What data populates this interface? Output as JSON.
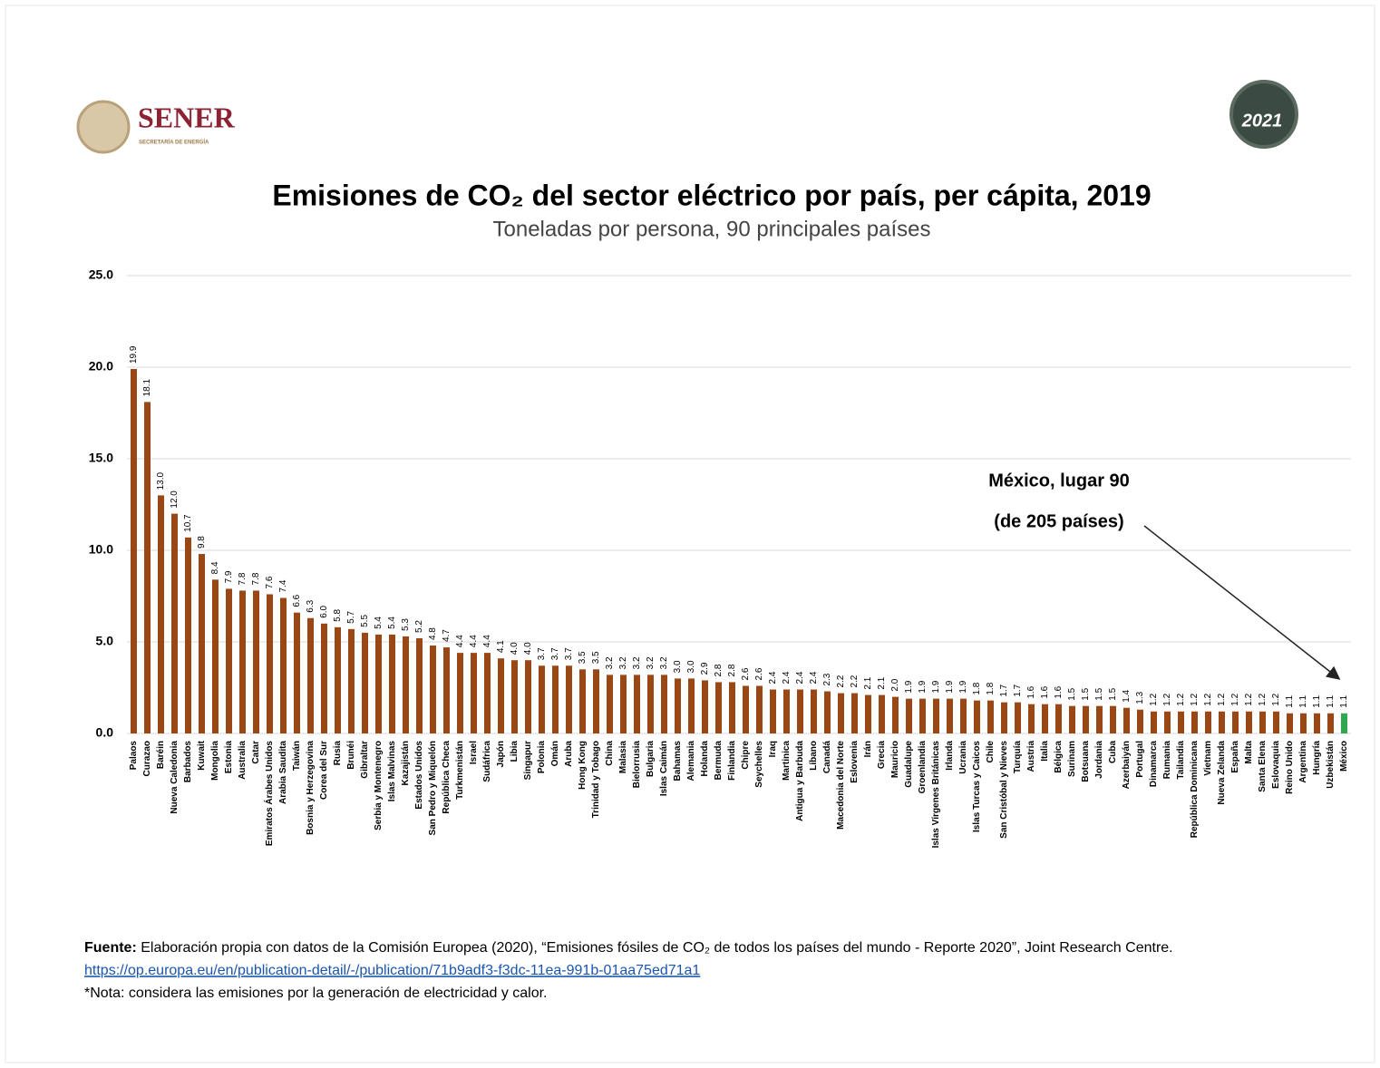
{
  "header": {
    "logo_left": "SENER",
    "logo_left_sub": "SECRETARÍA DE ENERGÍA",
    "logo_right": "2021"
  },
  "chart_data": {
    "type": "bar",
    "title": "Emisiones de CO₂ del sector eléctrico por país, per cápita, 2019",
    "subtitle": "Toneladas por persona, 90 principales países",
    "categories": [
      "Palaos",
      "Curazao",
      "Baréin",
      "Nueva Caledonia",
      "Barbados",
      "Kuwait",
      "Mongolia",
      "Estonia",
      "Australia",
      "Catar",
      "Emiratos Árabes Unidos",
      "Arabia Saudita",
      "Taiwán",
      "Bosnia y Herzegovina",
      "Corea del Sur",
      "Rusia",
      "Brunéi",
      "Gibraltar",
      "Serbia y Montenegro",
      "Islas Malvinas",
      "Kazajistán",
      "Estados Unidos",
      "San Pedro y Miquelón",
      "República Checa",
      "Turkmenistán",
      "Israel",
      "Sudáfrica",
      "Japón",
      "Libia",
      "Singapur",
      "Polonia",
      "Omán",
      "Aruba",
      "Hong Kong",
      "Trinidad y Tobago",
      "China",
      "Malasia",
      "Bielorrusia",
      "Bulgaria",
      "Islas Caimán",
      "Bahamas",
      "Alemania",
      "Holanda",
      "Bermuda",
      "Finlandia",
      "Chipre",
      "Seychelles",
      "Iraq",
      "Martinica",
      "Antigua y Barbuda",
      "Líbano",
      "Canadá",
      "Macedonia del Norte",
      "Eslovenia",
      "Irán",
      "Grecia",
      "Mauricio",
      "Guadalupe",
      "Groenlandia",
      "Islas Vírgenes Británicas",
      "Irlanda",
      "Ucrania",
      "Islas Turcas y Caicos",
      "Chile",
      "San Cristóbal y Nieves",
      "Turquía",
      "Austria",
      "Italia",
      "Bélgica",
      "Surinam",
      "Botsuana",
      "Jordania",
      "Cuba",
      "Azerbaiyán",
      "Portugal",
      "Dinamarca",
      "Rumania",
      "Tailandia",
      "República Dominicana",
      "Vietnam",
      "Nueva Zelanda",
      "España",
      "Malta",
      "Santa Elena",
      "Eslovaquia",
      "Reino Unido",
      "Argentina",
      "Hungría",
      "Uzbekistán",
      "México"
    ],
    "values": [
      19.9,
      18.1,
      13.0,
      12.0,
      10.7,
      9.8,
      8.4,
      7.9,
      7.8,
      7.8,
      7.6,
      7.4,
      6.6,
      6.3,
      6.0,
      5.8,
      5.7,
      5.5,
      5.4,
      5.4,
      5.3,
      5.2,
      4.8,
      4.7,
      4.4,
      4.4,
      4.4,
      4.1,
      4.0,
      4.0,
      3.7,
      3.7,
      3.7,
      3.5,
      3.5,
      3.2,
      3.2,
      3.2,
      3.2,
      3.2,
      3.0,
      3.0,
      2.9,
      2.8,
      2.8,
      2.6,
      2.6,
      2.4,
      2.4,
      2.4,
      2.4,
      2.3,
      2.2,
      2.2,
      2.1,
      2.1,
      2.0,
      1.9,
      1.9,
      1.9,
      1.9,
      1.9,
      1.8,
      1.8,
      1.7,
      1.7,
      1.6,
      1.6,
      1.6,
      1.5,
      1.5,
      1.5,
      1.5,
      1.4,
      1.3,
      1.2,
      1.2,
      1.2,
      1.2,
      1.2,
      1.2,
      1.2,
      1.2,
      1.2,
      1.2,
      1.1,
      1.1,
      1.1,
      1.1,
      1.1
    ],
    "value_labels": [
      "19.9",
      "18.1",
      "13.0",
      "12.0",
      "10.7",
      "9.8",
      "8.4",
      "7.9",
      "7.8",
      "7.8",
      "7.6",
      "7.4",
      "6.6",
      "6.3",
      "6.0",
      "5.8",
      "5.7",
      "5.5",
      "5.4",
      "5.4",
      "5.3",
      "5.2",
      "4.8",
      "4.7",
      "4.4",
      "4.4",
      "4.4",
      "4.1",
      "4.0",
      "4.0",
      "3.7",
      "3.7",
      "3.7",
      "3.5",
      "3.5",
      "3.2",
      "3.2",
      "3.2",
      "3.2",
      "3.2",
      "3.0",
      "3.0",
      "2.9",
      "2.8",
      "2.8",
      "2.6",
      "2.6",
      "2.4",
      "2.4",
      "2.4",
      "2.4",
      "2.3",
      "2.2",
      "2.2",
      "2.1",
      "2.1",
      "2.0",
      "1.9",
      "1.9",
      "1.9",
      "1.9",
      "1.9",
      "1.8",
      "1.8",
      "1.7",
      "1.7",
      "1.6",
      "1.6",
      "1.6",
      "1.5",
      "1.5",
      "1.5",
      "1.5",
      "1.4",
      "1.3",
      "1.2",
      "1.2",
      "1.2",
      "1.2",
      "1.2",
      "1.2",
      "1.2",
      "1.2",
      "1.2",
      "1.2",
      "1.1",
      "1.1",
      "1.1",
      "1.1",
      "1.1"
    ],
    "color": "#9a4716",
    "highlight": {
      "category": "México",
      "color": "#2fa84f"
    },
    "ylim": [
      0,
      25
    ],
    "yticks": [
      {
        "value": 0,
        "label": "0.0"
      },
      {
        "value": 5,
        "label": "5.0"
      },
      {
        "value": 10,
        "label": "10.0"
      },
      {
        "value": 15,
        "label": "15.0"
      },
      {
        "value": 20,
        "label": "20.0"
      },
      {
        "value": 25,
        "label": "25.0"
      }
    ],
    "grid": true,
    "annotation": [
      "México, lugar 90",
      "(de 205 países)"
    ]
  },
  "footer": {
    "source_label": "Fuente:",
    "source": " Elaboración propia con datos de la Comisión Europea (2020), “Emisiones fósiles de CO₂ de todos los países del mundo - Reporte 2020”, Joint Research Centre.",
    "link": "https://op.europa.eu/en/publication-detail/-/publication/71b9adf3-f3dc-11ea-991b-01aa75ed71a1",
    "note": "*Nota: considera las emisiones por la generación de electricidad y calor."
  }
}
